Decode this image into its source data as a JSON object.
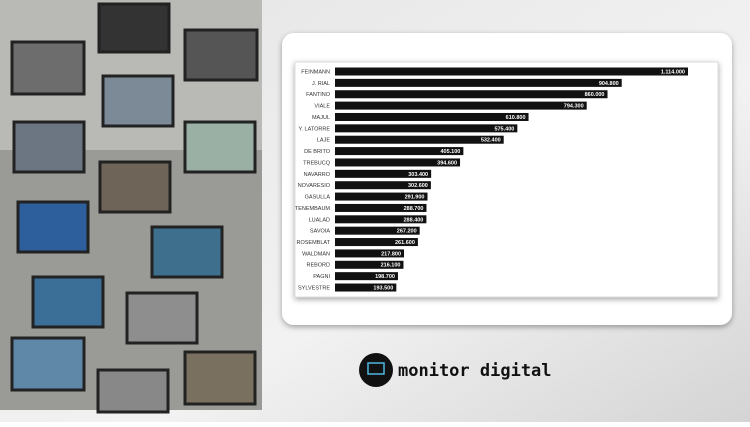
{
  "chart_data": {
    "type": "bar",
    "orientation": "horizontal",
    "color": "#111111",
    "categories": [
      "FEINMANN",
      "J. RIAL",
      "FANTINO",
      "VIALE",
      "MAJUL",
      "Y. LATORRE",
      "LAJE",
      "DE BRITO",
      "TREBUCQ",
      "NAVARRO",
      "NOVARESIO",
      "GASULLA",
      "TENEMBAUM",
      "LUALAD",
      "SAVOIA",
      "ROSEMBLAT",
      "WALDMAN",
      "REBORD",
      "PAGNI",
      "SYLVESTRE"
    ],
    "values": [
      1114000,
      904800,
      860000,
      794300,
      610800,
      575400,
      532400,
      405100,
      394600,
      303400,
      302600,
      291900,
      288700,
      288400,
      267200,
      261600,
      217800,
      216100,
      198700,
      193500
    ],
    "value_labels": [
      "1.114.000",
      "904.800",
      "860.000",
      "794.300",
      "610.800",
      "575.400",
      "532.400",
      "405.100",
      "394.600",
      "303.400",
      "302.600",
      "291.900",
      "288.700",
      "288.400",
      "267.200",
      "261.600",
      "217.800",
      "216.100",
      "198.700",
      "193.500"
    ]
  },
  "brand": "monitor digital"
}
